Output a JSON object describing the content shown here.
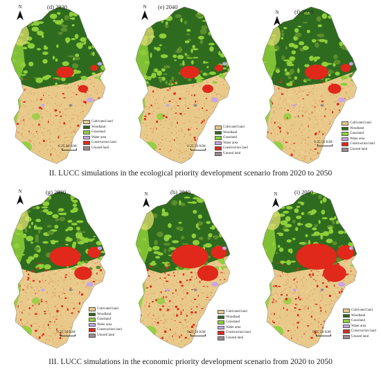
{
  "north_label": "N",
  "scale_label": "0  25  50 KM",
  "legend": [
    {
      "label": "Cultivated land",
      "color": "#e8c98a"
    },
    {
      "label": "Woodland",
      "color": "#2f6b1f"
    },
    {
      "label": "Grassland",
      "color": "#8ecf3a"
    },
    {
      "label": "Water area",
      "color": "#c7a6e8"
    },
    {
      "label": "Construction land",
      "color": "#e0281b"
    },
    {
      "label": "Unused land",
      "color": "#9a8a8e"
    }
  ],
  "scenarios": [
    {
      "caption": "II. LUCC simulations in the ecological priority development scenario from 2020 to 2050",
      "panels": [
        {
          "label": "(d) 2030"
        },
        {
          "label": "(e) 2040"
        },
        {
          "label": "(f) 2050"
        }
      ]
    },
    {
      "caption": "III. LUCC simulations in the economic priority development scenario from 2020 to 2050",
      "panels": [
        {
          "label": "(g) 2030"
        },
        {
          "label": "(h) 2040"
        },
        {
          "label": "(i) 2050"
        }
      ]
    }
  ]
}
